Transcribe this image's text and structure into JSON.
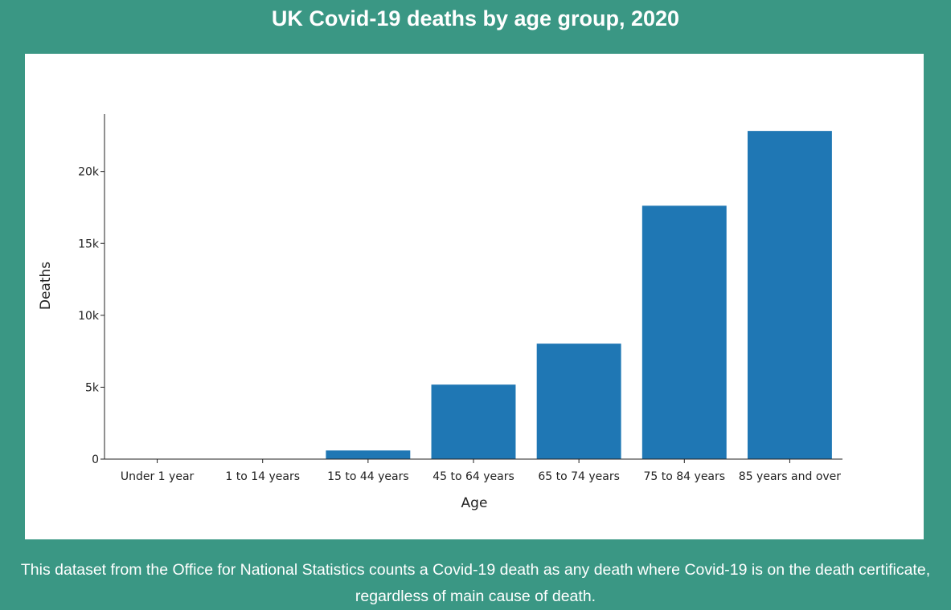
{
  "page": {
    "title": "UK Covid-19 deaths by age group, 2020",
    "caption": "This dataset from the Office for National Statistics counts a Covid-19 death as any death where Covid-19 is on the death certificate, regardless of main cause of death."
  },
  "colors": {
    "background": "#3a9784",
    "panel": "#ffffff",
    "bar": "#1f77b4",
    "text": "#ffffff",
    "axis": "#222222"
  },
  "chart_data": {
    "type": "bar",
    "title": "",
    "xlabel": "Age",
    "ylabel": "Deaths",
    "categories": [
      "Under 1 year",
      "1 to 14 years",
      "15 to 44 years",
      "45 to 64 years",
      "65 to 74 years",
      "75 to 84 years",
      "85 years and over"
    ],
    "values": [
      3,
      10,
      600,
      5180,
      8030,
      17620,
      22820
    ],
    "ylim": [
      0,
      24000
    ],
    "yticks": [
      0,
      5000,
      10000,
      15000,
      20000
    ],
    "ytick_labels": [
      "0",
      "5k",
      "10k",
      "15k",
      "20k"
    ],
    "grid": false,
    "legend": "none"
  }
}
